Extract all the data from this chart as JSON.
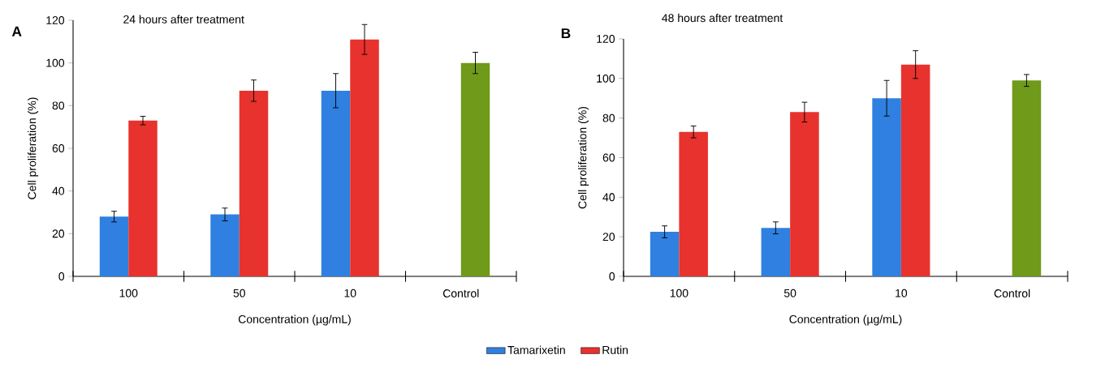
{
  "chart_data": [
    {
      "type": "bar",
      "title": "24 hours after treatment",
      "xlabel": "Concentration (µg/mL)",
      "ylabel": "Cell proliferation (%)",
      "categories": [
        "100",
        "50",
        "10",
        "Control"
      ],
      "series": [
        {
          "name": "Tamarixetin",
          "color": "#2f80e0",
          "values": [
            28,
            29,
            87,
            null
          ],
          "errors": [
            2.5,
            3,
            8,
            null
          ]
        },
        {
          "name": "Rutin",
          "color": "#e8322d",
          "values": [
            73,
            87,
            111,
            null
          ],
          "errors": [
            2,
            5,
            7,
            null
          ]
        },
        {
          "color": "#6f9a1a",
          "values": [
            null,
            null,
            null,
            100
          ],
          "errors": [
            null,
            null,
            null,
            5
          ]
        }
      ],
      "ylim": [
        0,
        120
      ],
      "yticks": [
        0,
        20,
        40,
        60,
        80,
        100,
        120
      ],
      "legend": "bottom",
      "annotations": [
        "A"
      ]
    },
    {
      "type": "bar",
      "title": "48 hours after treatment",
      "xlabel": "Concentration (µg/mL)",
      "ylabel": "Cell proliferation (%)",
      "categories": [
        "100",
        "50",
        "10",
        "Control"
      ],
      "series": [
        {
          "color": "#2f80e0",
          "values": [
            22.5,
            24.5,
            90,
            null
          ],
          "errors": [
            3,
            3,
            9,
            null
          ]
        },
        {
          "color": "#e8322d",
          "values": [
            73,
            83,
            107,
            null
          ],
          "errors": [
            3,
            5,
            7,
            null
          ]
        },
        {
          "color": "#6f9a1a",
          "values": [
            null,
            null,
            null,
            99
          ],
          "errors": [
            null,
            null,
            null,
            3
          ]
        }
      ],
      "ylim": [
        0,
        120
      ],
      "yticks": [
        0,
        20,
        40,
        60,
        80,
        100,
        120
      ],
      "annotations": [
        "B"
      ]
    }
  ]
}
